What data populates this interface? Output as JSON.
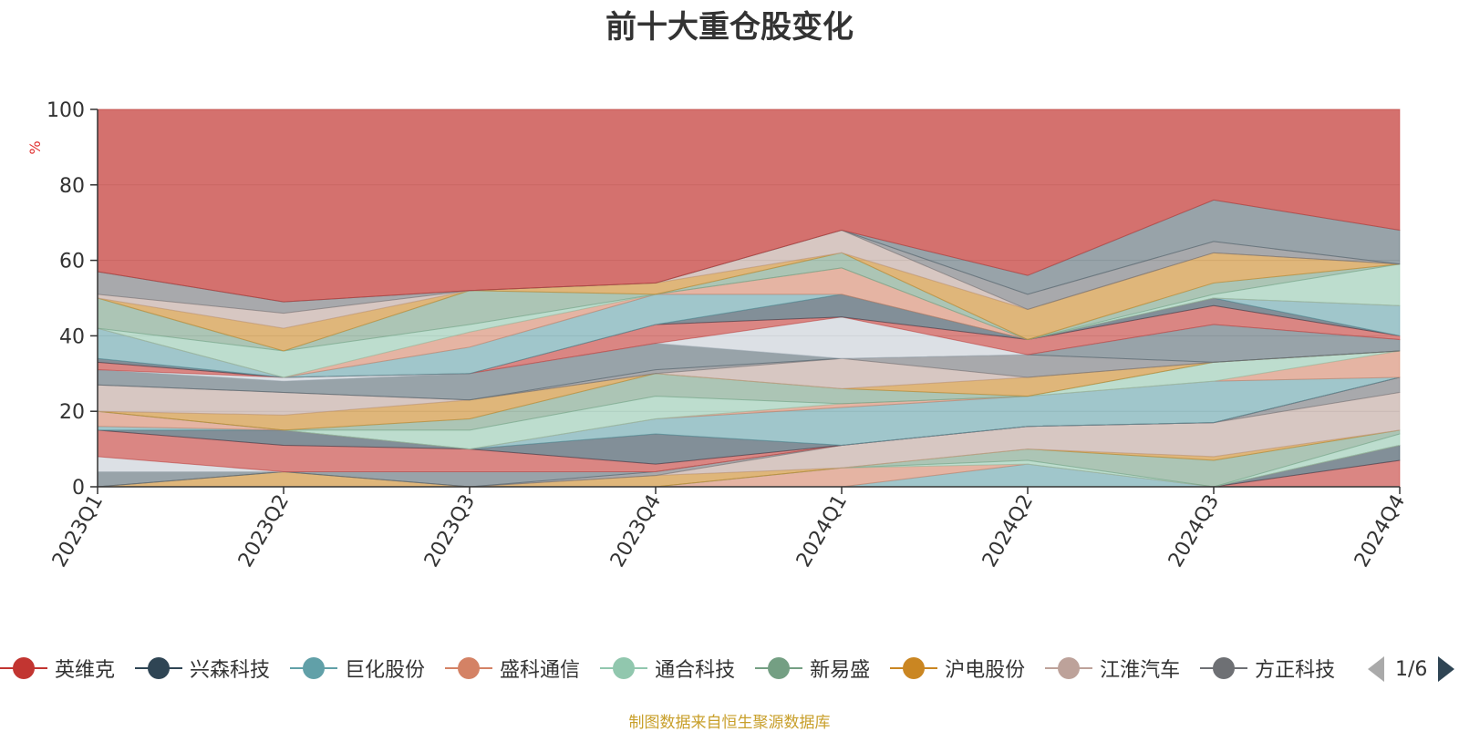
{
  "title": "前十大重仓股变化",
  "source": "制图数据来自恒生聚源数据库",
  "pager": {
    "text": "1/6",
    "prev_icon": "triangle-left-icon",
    "next_icon": "triangle-right-icon"
  },
  "legend": [
    {
      "name": "英维克",
      "color": "#c23531"
    },
    {
      "name": "兴森科技",
      "color": "#2f4554"
    },
    {
      "name": "巨化股份",
      "color": "#61a0a8"
    },
    {
      "name": "盛科通信",
      "color": "#d48265"
    },
    {
      "name": "通合科技",
      "color": "#91c7ae"
    },
    {
      "name": "新易盛",
      "color": "#749f83"
    },
    {
      "name": "沪电股份",
      "color": "#ca8622"
    },
    {
      "name": "江淮汽车",
      "color": "#bda29a"
    },
    {
      "name": "方正科技",
      "color": "#6e7074"
    }
  ],
  "chart_data": {
    "type": "area",
    "title": "前十大重仓股变化",
    "ylabel": "%",
    "ylim": [
      0,
      100
    ],
    "yticks": [
      0,
      20,
      40,
      60,
      80,
      100
    ],
    "grid": true,
    "legend_position": "bottom",
    "categories": [
      "2023Q1",
      "2023Q2",
      "2023Q3",
      "2023Q4",
      "2024Q1",
      "2024Q2",
      "2024Q3",
      "2024Q4"
    ],
    "cumulative_boundaries": [
      [
        0,
        0,
        0,
        0,
        0,
        0,
        0,
        0
      ],
      [
        0,
        0,
        0,
        0,
        0,
        0,
        0,
        7
      ],
      [
        0,
        0,
        0,
        0,
        0,
        0,
        0,
        11
      ],
      [
        0,
        0,
        0,
        0,
        0,
        6,
        0,
        11
      ],
      [
        0,
        0,
        0,
        0,
        5,
        6,
        0,
        11
      ],
      [
        0,
        0,
        0,
        0,
        5,
        7,
        0,
        14
      ],
      [
        0,
        0,
        0,
        0,
        5,
        10,
        7,
        15
      ],
      [
        0,
        4,
        0,
        3,
        5,
        10,
        8,
        15
      ],
      [
        0,
        4,
        0,
        3,
        11,
        16,
        17,
        25
      ],
      [
        0,
        4,
        0,
        4,
        11,
        16,
        17,
        29
      ],
      [
        4,
        4,
        4,
        4,
        11,
        16,
        17,
        29
      ],
      [
        8,
        4,
        4,
        4,
        11,
        16,
        17,
        29
      ],
      [
        15,
        11,
        10,
        6,
        11,
        16,
        17,
        29
      ],
      [
        15,
        15,
        10,
        14,
        11,
        16,
        17,
        29
      ],
      [
        16,
        15,
        10,
        18,
        21,
        24,
        28,
        29
      ],
      [
        20,
        15,
        10,
        18,
        22,
        24,
        28,
        36
      ],
      [
        20,
        15,
        15,
        24,
        22,
        24,
        33,
        36
      ],
      [
        20,
        15,
        18,
        30,
        26,
        24,
        33,
        36
      ],
      [
        20,
        19,
        23,
        30,
        26,
        29,
        33,
        36
      ],
      [
        27,
        25,
        23,
        30,
        34,
        29,
        33,
        36
      ],
      [
        27,
        25,
        23,
        31,
        34,
        35,
        33,
        36
      ],
      [
        31,
        28,
        30,
        38,
        34,
        35,
        43,
        39
      ],
      [
        31,
        29,
        30,
        38,
        45,
        35,
        43,
        39
      ],
      [
        33,
        29,
        30,
        43,
        45,
        39,
        48,
        40
      ],
      [
        34,
        29,
        30,
        43,
        51,
        39,
        50,
        40
      ],
      [
        42,
        29,
        37,
        51,
        51,
        39,
        50,
        48
      ],
      [
        42,
        29,
        41,
        51,
        58,
        39,
        50,
        48
      ],
      [
        42,
        36,
        43,
        51,
        58,
        39,
        51,
        59
      ],
      [
        50,
        36,
        52,
        51,
        62,
        39,
        54,
        59
      ],
      [
        50,
        42,
        52,
        54,
        62,
        47,
        62,
        59
      ],
      [
        51,
        46,
        52,
        54,
        68,
        47,
        62,
        59
      ],
      [
        57,
        49,
        52,
        54,
        68,
        51,
        65,
        59
      ],
      [
        57,
        49,
        52,
        54,
        68,
        56,
        76,
        68
      ],
      [
        100,
        100,
        100,
        100,
        100,
        100,
        100,
        100
      ]
    ]
  }
}
